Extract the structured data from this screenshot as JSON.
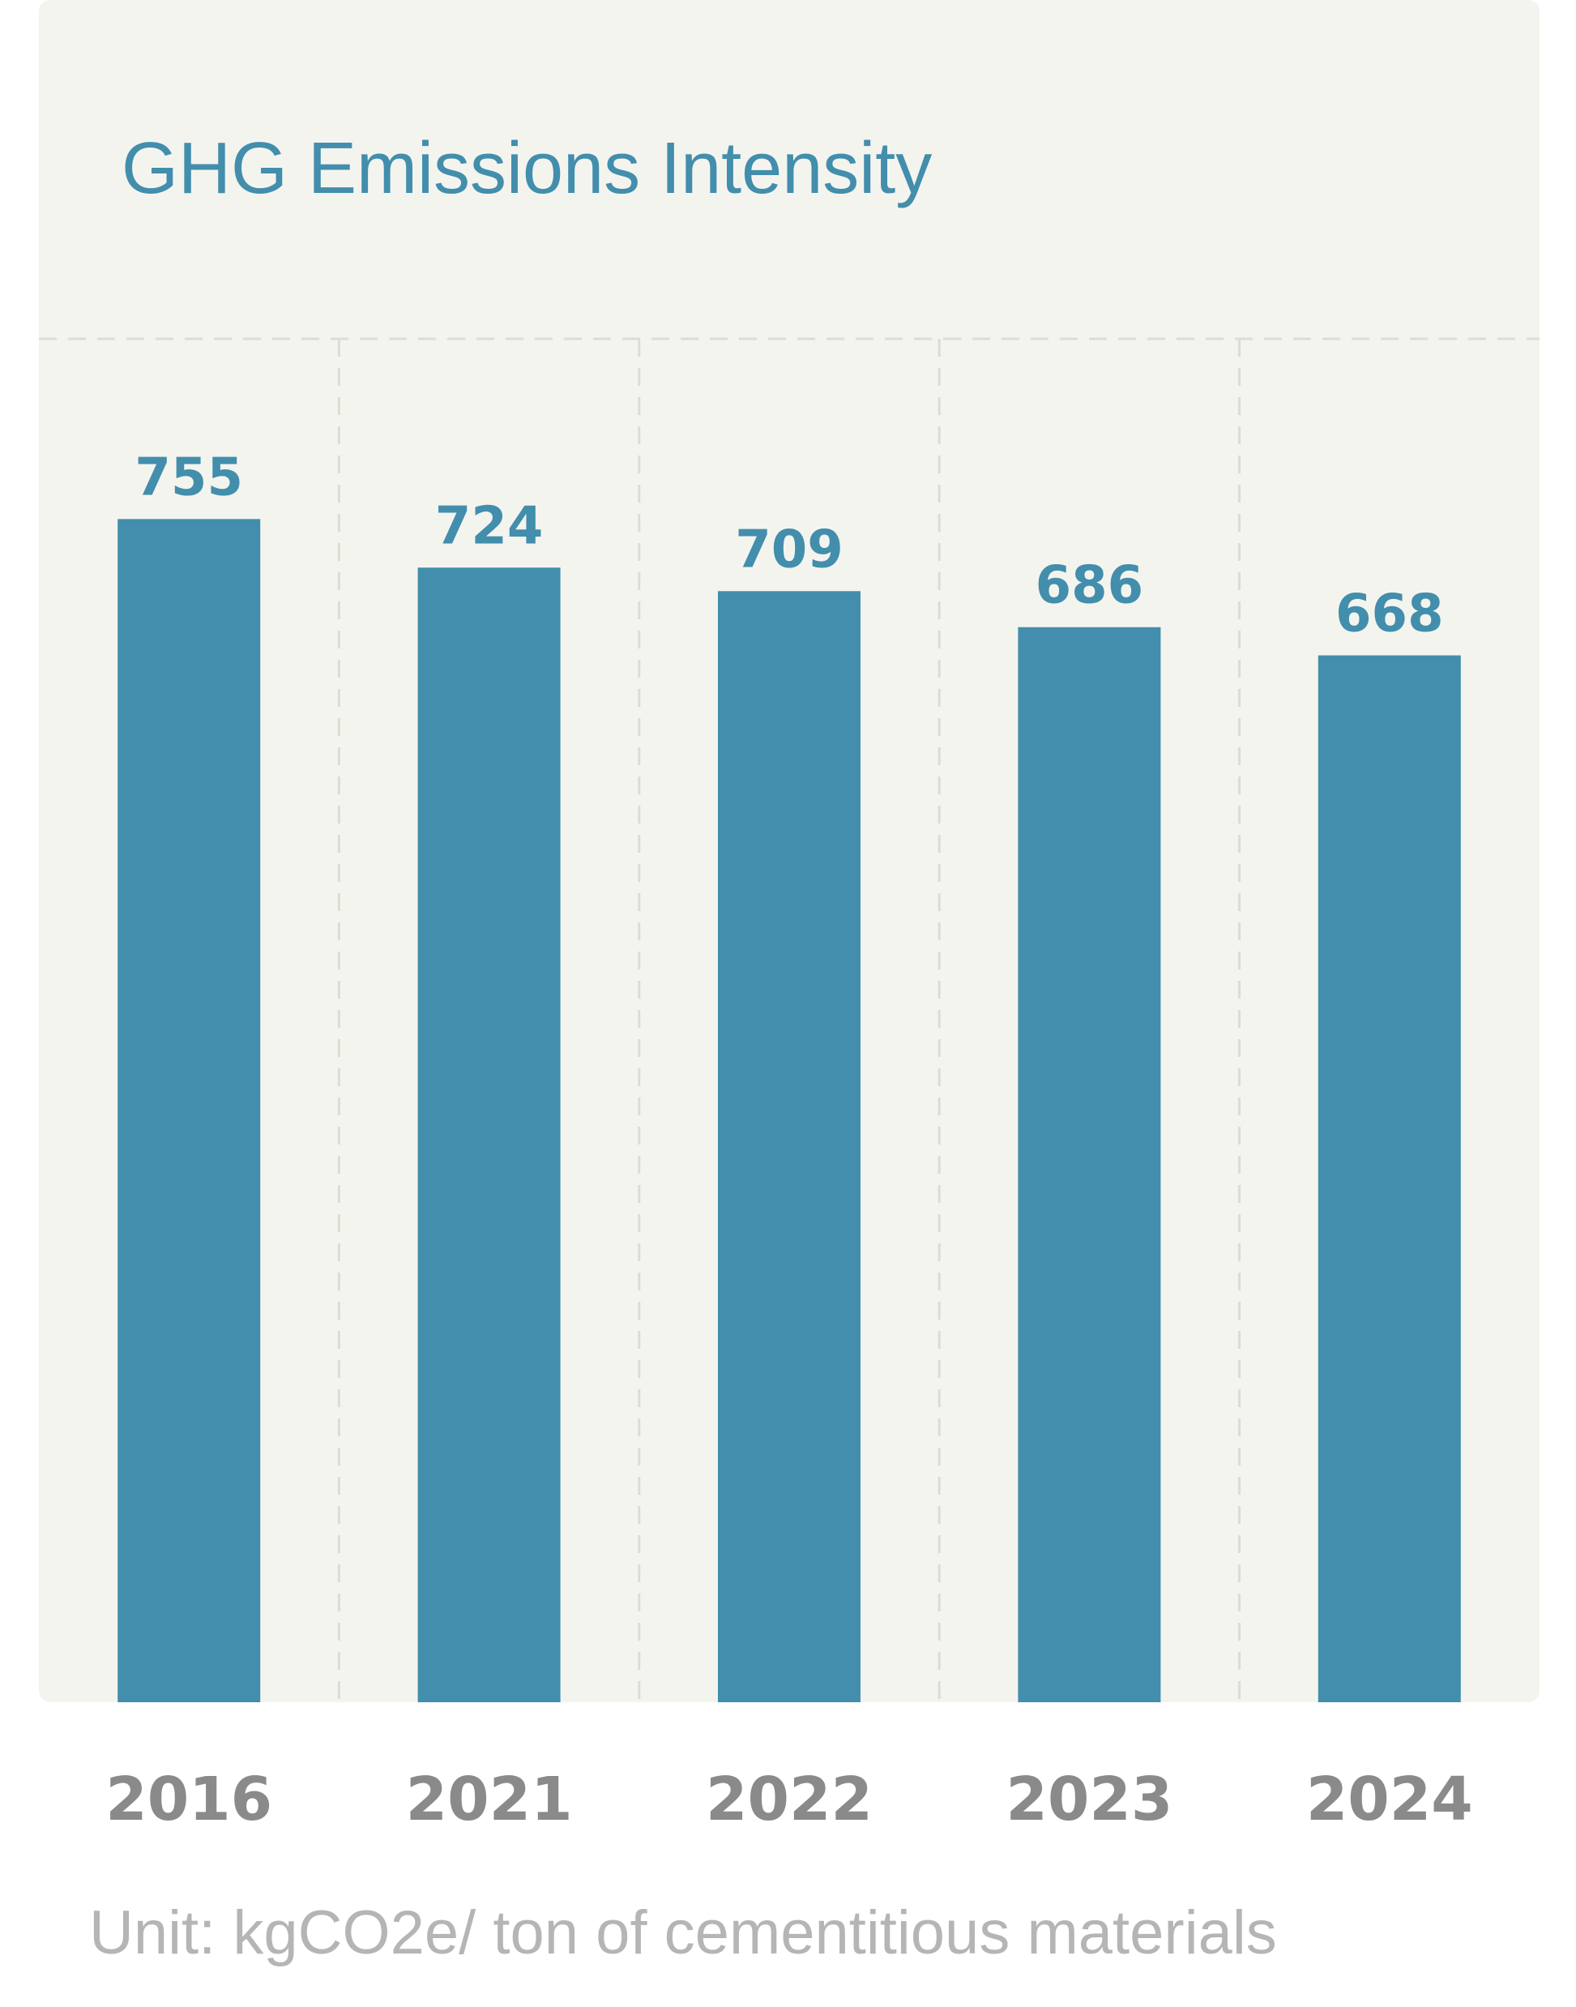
{
  "chart_data": {
    "type": "bar",
    "title": "GHG Emissions Intensity",
    "categories": [
      "2016",
      "2021",
      "2022",
      "2023",
      "2024"
    ],
    "values": [
      755,
      724,
      709,
      686,
      668
    ],
    "unit_note": "Unit: kgCO2e/ ton of cementitious materials",
    "xlabel": "",
    "ylabel": "",
    "ylim": [
      0,
      870
    ],
    "grid": true,
    "legend": "none",
    "colors": {
      "bar": "#428eac",
      "title": "#428eac",
      "value_label": "#428eac",
      "tick_label": "#8a8a8a",
      "unit_note": "#b5b5b5",
      "panel_background": "#f4f4ef",
      "grid_line": "#dcdcd6"
    }
  }
}
